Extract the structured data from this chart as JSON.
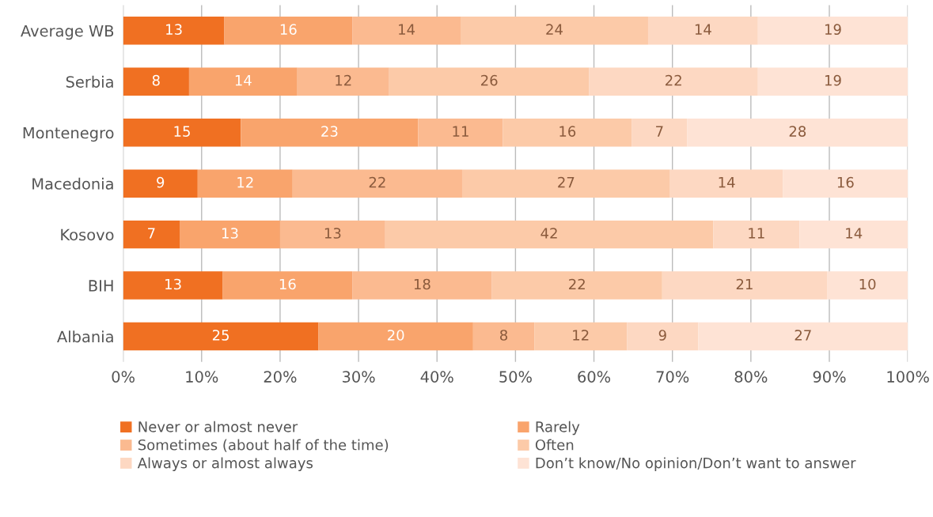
{
  "chart_data": {
    "type": "bar",
    "orientation": "horizontal",
    "stacked": true,
    "categories": [
      "Average WB",
      "Serbia",
      "Montenegro",
      "Macedonia",
      "Kosovo",
      "BIH",
      "Albania"
    ],
    "series": [
      {
        "name": "Never or almost never",
        "color": "#f07022",
        "values": [
          12.9,
          8.4,
          15.0,
          9.5,
          7.2,
          12.7,
          24.9
        ],
        "value_labels": [
          "13",
          "8",
          "15",
          "9",
          "7",
          "13",
          "25"
        ]
      },
      {
        "name": "Rarely",
        "color": "#f9a46c",
        "values": [
          16.3,
          13.8,
          22.6,
          12.1,
          12.8,
          16.5,
          19.7
        ],
        "value_labels": [
          "16",
          "14",
          "23",
          "12",
          "13",
          "16",
          "20"
        ]
      },
      {
        "name": "Sometimes (about half of the time)",
        "color": "#fbba90",
        "values": [
          13.8,
          11.7,
          10.8,
          21.6,
          13.4,
          17.8,
          7.8
        ],
        "value_labels": [
          "14",
          "12",
          "11",
          "22",
          "13",
          "18",
          "8"
        ]
      },
      {
        "name": "Often",
        "color": "#fccaa8",
        "values": [
          23.9,
          25.5,
          16.4,
          26.5,
          41.8,
          21.7,
          11.8
        ],
        "value_labels": [
          "24",
          "26",
          "16",
          "27",
          "42",
          "22",
          "12"
        ]
      },
      {
        "name": "Always or almost always",
        "color": "#fdd8c2",
        "values": [
          14.0,
          21.5,
          7.1,
          14.4,
          11.0,
          21.0,
          9.1
        ],
        "value_labels": [
          "14",
          "22",
          "7",
          "14",
          "11",
          "21",
          "9"
        ]
      },
      {
        "name": "Don’t know/No opinion/Don’t want to answer",
        "color": "#fee3d5",
        "values": [
          19.1,
          19.1,
          28.1,
          15.9,
          13.8,
          10.3,
          26.7
        ],
        "value_labels": [
          "19",
          "19",
          "28",
          "16",
          "14",
          "10",
          "27"
        ]
      }
    ],
    "xlim": [
      0,
      100
    ],
    "xticks": [
      {
        "value": 0,
        "label": "0%"
      },
      {
        "value": 10,
        "label": "10%"
      },
      {
        "value": 20,
        "label": "20%"
      },
      {
        "value": 30,
        "label": "30%"
      },
      {
        "value": 40,
        "label": "40%"
      },
      {
        "value": 50,
        "label": "50%"
      },
      {
        "value": 60,
        "label": "60%"
      },
      {
        "value": 70,
        "label": "70%"
      },
      {
        "value": 80,
        "label": "80%"
      },
      {
        "value": 90,
        "label": "90%"
      },
      {
        "value": 100,
        "label": "100%"
      }
    ],
    "grid": "x",
    "legend": "bottom"
  }
}
